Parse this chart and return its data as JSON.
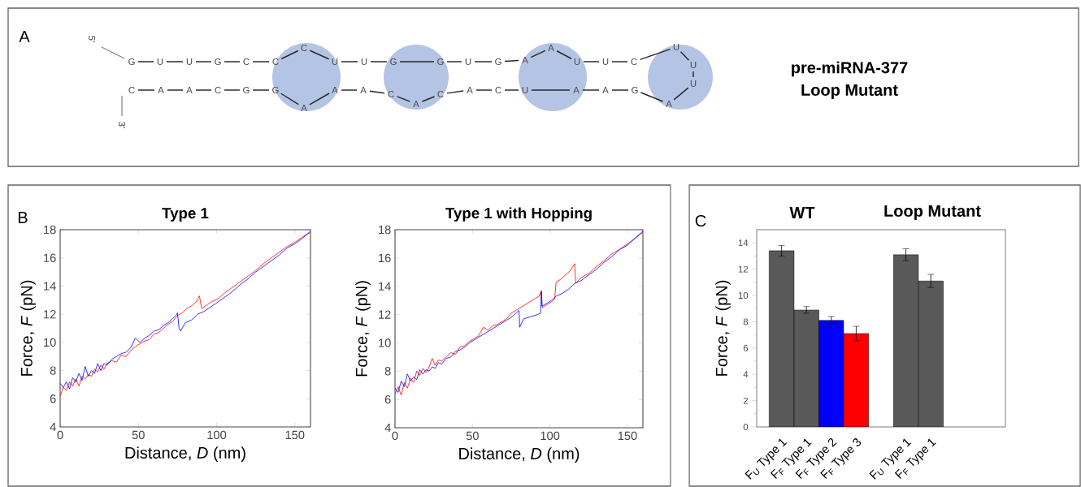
{
  "chart_data": [
    {
      "type": "other",
      "title": "pre-miRNA-377",
      "subtitle": "Loop Mutant",
      "annotations": [
        "A",
        "5'",
        "3'",
        "G",
        "U",
        "U",
        "G",
        "C",
        "C",
        "C",
        "U",
        "U",
        "G",
        "G",
        "U",
        "G",
        "A",
        "A",
        "U",
        "U",
        "C",
        "U",
        "U",
        "U",
        "A",
        "G",
        "A",
        "A",
        "U",
        "C",
        "A",
        "C",
        "A",
        "C",
        "A",
        "A",
        "A",
        "G",
        "G",
        "C",
        "A",
        "A",
        "C"
      ]
    },
    {
      "type": "line",
      "title": "Type 1",
      "xlabel": "Distance, *D* (nm)",
      "ylabel": "Force, *F* (pN)",
      "annotations": [
        "B"
      ],
      "xlim": [
        0,
        160
      ],
      "ylim": [
        4,
        18
      ],
      "xticks": [
        0,
        50,
        100,
        150
      ],
      "yticks": [
        4,
        6,
        8,
        10,
        12,
        14,
        16,
        18
      ],
      "series": [
        {
          "color": "#ff0000",
          "x": [
            0,
            2,
            4,
            6,
            8,
            10,
            12,
            14,
            16,
            18,
            20,
            22,
            24,
            26,
            28,
            30,
            33,
            36,
            39,
            42,
            45,
            48,
            51,
            54,
            57,
            60,
            63,
            66,
            69,
            72,
            75,
            78,
            81,
            84,
            87,
            89,
            90,
            90.5,
            93,
            97,
            101,
            105,
            110,
            115,
            120,
            125,
            130,
            135,
            140,
            145,
            150,
            155,
            160
          ],
          "values": [
            6.2,
            6.8,
            6.6,
            7.2,
            6.9,
            7.4,
            6.9,
            7.6,
            7.4,
            7.7,
            7.6,
            8.1,
            7.9,
            8.4,
            8.1,
            8.5,
            8.7,
            8.6,
            9.1,
            9.0,
            9.4,
            9.7,
            9.9,
            10.1,
            10.2,
            10.6,
            10.7,
            11.0,
            11.3,
            11.5,
            11.9,
            12.1,
            12.4,
            12.6,
            12.9,
            13.3,
            12.7,
            12.4,
            12.6,
            12.9,
            13.1,
            13.5,
            13.9,
            14.3,
            14.7,
            15.1,
            15.6,
            16.0,
            16.4,
            16.8,
            17.1,
            17.5,
            17.8
          ]
        },
        {
          "color": "#0000ff",
          "x": [
            0,
            2,
            4,
            6,
            8,
            10,
            12,
            14,
            16,
            18,
            20,
            22,
            24,
            26,
            28,
            30,
            33,
            36,
            39,
            42,
            45,
            48,
            51,
            54,
            57,
            60,
            63,
            66,
            69,
            72,
            74,
            75,
            76,
            77,
            80,
            84,
            88,
            92,
            96,
            100,
            105,
            110,
            115,
            120,
            125,
            130,
            135,
            140,
            145,
            150,
            155,
            160
          ],
          "values": [
            7.1,
            6.8,
            7.2,
            6.7,
            7.5,
            7.2,
            7.8,
            7.3,
            8.3,
            7.6,
            8.0,
            7.8,
            8.5,
            8.0,
            8.5,
            8.4,
            8.8,
            9.0,
            9.2,
            9.3,
            9.6,
            10.3,
            10.0,
            10.3,
            10.5,
            10.8,
            10.9,
            11.2,
            11.4,
            11.7,
            11.9,
            12.1,
            11.0,
            10.8,
            11.4,
            11.6,
            12.0,
            12.2,
            12.5,
            12.8,
            13.2,
            13.6,
            14.1,
            14.5,
            15.0,
            15.4,
            15.8,
            16.2,
            16.7,
            17.0,
            17.4,
            17.9
          ]
        }
      ]
    },
    {
      "type": "line",
      "title": "Type 1 with Hopping",
      "xlabel": "Distance, *D* (nm)",
      "ylabel": "Force, *F* (pN)",
      "xlim": [
        0,
        160
      ],
      "ylim": [
        4,
        18
      ],
      "xticks": [
        0,
        50,
        100,
        150
      ],
      "yticks": [
        4,
        6,
        8,
        10,
        12,
        14,
        16,
        18
      ],
      "series": [
        {
          "color": "#ff0000",
          "x": [
            0,
            2,
            4,
            6,
            8,
            10,
            12,
            14,
            16,
            18,
            20,
            22,
            24,
            26,
            28,
            30,
            33,
            36,
            39,
            42,
            45,
            48,
            51,
            54,
            57,
            60,
            63,
            66,
            69,
            72,
            75,
            78,
            81,
            84,
            87,
            90,
            93,
            94,
            95,
            98,
            101,
            103,
            104,
            107,
            110,
            113,
            116,
            116.5,
            120,
            125,
            130,
            135,
            140,
            145,
            150,
            155,
            160
          ],
          "values": [
            6.4,
            6.9,
            6.3,
            7.2,
            6.8,
            7.5,
            7.2,
            8.0,
            7.7,
            8.2,
            7.9,
            8.3,
            8.9,
            8.4,
            8.8,
            8.7,
            9.0,
            9.3,
            9.2,
            9.7,
            9.8,
            10.1,
            10.3,
            10.5,
            11.1,
            10.9,
            11.2,
            11.3,
            11.5,
            11.7,
            12.1,
            12.3,
            12.5,
            12.7,
            12.9,
            13.1,
            13.3,
            13.6,
            12.5,
            12.7,
            12.9,
            13.1,
            14.3,
            14.5,
            14.8,
            15.1,
            15.6,
            14.2,
            14.6,
            14.9,
            15.4,
            15.8,
            16.3,
            16.6,
            17.0,
            17.4,
            17.8
          ]
        },
        {
          "color": "#0000ff",
          "x": [
            0,
            2,
            4,
            6,
            8,
            10,
            12,
            14,
            16,
            18,
            20,
            22,
            24,
            26,
            28,
            30,
            33,
            36,
            39,
            42,
            45,
            48,
            51,
            54,
            57,
            60,
            63,
            66,
            69,
            72,
            75,
            78,
            80,
            80.5,
            83,
            86,
            89,
            92,
            94,
            94.5,
            95,
            98,
            101,
            104,
            108,
            112,
            116,
            120,
            125,
            130,
            135,
            140,
            145,
            150,
            155,
            160
          ],
          "values": [
            6.8,
            6.5,
            7.3,
            6.9,
            7.8,
            7.3,
            7.6,
            7.4,
            8.1,
            7.8,
            8.1,
            8.0,
            8.3,
            8.2,
            8.6,
            8.5,
            8.9,
            9.0,
            9.4,
            9.5,
            9.7,
            10.0,
            10.2,
            10.4,
            10.6,
            10.8,
            11.0,
            11.2,
            11.4,
            11.6,
            11.8,
            12.1,
            12.3,
            11.1,
            11.7,
            11.8,
            11.9,
            12.0,
            12.1,
            13.7,
            12.6,
            12.8,
            13.0,
            13.3,
            13.5,
            13.8,
            14.2,
            14.4,
            14.8,
            15.2,
            15.7,
            16.1,
            16.6,
            16.9,
            17.4,
            17.9
          ]
        }
      ]
    },
    {
      "type": "bar",
      "ylabel": "Force, *F* (pN)",
      "annotations": [
        "C",
        "WT",
        "Loop Mutant"
      ],
      "categories": [
        "F$_{U}$ Type 1",
        "F$_{F}$ Type 1",
        "F$_{F}$ Type 2",
        "F$_{F}$ Type 3",
        null,
        "F$_{U}$ Type 1",
        "F$_{F}$ Type 1",
        null,
        null
      ],
      "values": [
        13.4,
        8.9,
        8.1,
        7.1,
        null,
        13.1,
        11.1,
        null,
        null
      ],
      "errors": [
        0.4,
        0.25,
        0.3,
        0.55,
        null,
        0.45,
        0.5,
        null,
        null
      ],
      "colors": [
        "#595959",
        "#595959",
        "#0000ff",
        "#ff0000",
        null,
        "#595959",
        "#595959",
        null,
        null
      ],
      "ylim": [
        0,
        15
      ],
      "yticks": [
        0,
        2,
        4,
        6,
        8,
        10,
        12,
        14
      ]
    }
  ]
}
